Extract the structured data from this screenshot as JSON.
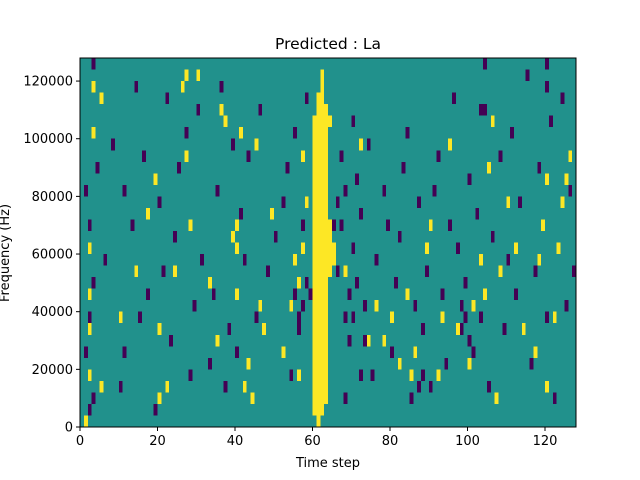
{
  "chart_data": {
    "type": "heatmap",
    "title": "Predicted : La",
    "xlabel": "Time step",
    "ylabel": "Frequency (Hz)",
    "xlim": [
      0,
      128
    ],
    "ylim": [
      0,
      128000
    ],
    "x_ticks": [
      0,
      20,
      40,
      60,
      80,
      100,
      120
    ],
    "x_tick_labels": [
      "0",
      "20",
      "40",
      "60",
      "80",
      "100",
      "120"
    ],
    "y_ticks": [
      0,
      20000,
      40000,
      60000,
      80000,
      100000,
      120000
    ],
    "y_tick_labels": [
      "0",
      "20000",
      "40000",
      "60000",
      "80000",
      "100000",
      "120000"
    ],
    "grid": false,
    "legend": "none",
    "colormap": "viridis",
    "colors": {
      "background": "#21918c",
      "high": "#fde725",
      "low": "#440154"
    },
    "bin_height": 4000,
    "high_cells": [
      [
        1,
        0
      ],
      [
        2,
        4
      ],
      [
        2,
        8
      ],
      [
        2,
        15
      ],
      [
        3,
        25
      ],
      [
        3,
        29
      ],
      [
        5,
        28
      ],
      [
        20,
        2
      ],
      [
        20,
        8
      ],
      [
        22,
        3
      ],
      [
        26,
        29
      ],
      [
        27,
        23
      ],
      [
        27,
        30
      ],
      [
        28,
        17
      ],
      [
        36,
        27
      ],
      [
        37,
        26
      ],
      [
        33,
        12
      ],
      [
        39,
        16
      ],
      [
        40,
        11
      ],
      [
        40,
        15
      ],
      [
        40,
        17
      ],
      [
        41,
        25
      ],
      [
        42,
        3
      ],
      [
        43,
        5
      ],
      [
        45,
        24
      ],
      [
        47,
        8
      ],
      [
        54,
        10
      ],
      [
        55,
        14
      ],
      [
        56,
        12
      ],
      [
        57,
        15
      ],
      [
        57,
        23
      ],
      [
        60,
        8
      ],
      [
        61,
        20
      ],
      [
        61,
        21
      ],
      [
        62,
        22
      ],
      [
        63,
        24
      ],
      [
        64,
        26
      ],
      [
        78,
        7
      ],
      [
        80,
        9
      ],
      [
        82,
        5
      ],
      [
        84,
        11
      ],
      [
        85,
        4
      ],
      [
        89,
        15
      ],
      [
        90,
        17
      ],
      [
        93,
        9
      ],
      [
        95,
        24
      ],
      [
        100,
        5
      ],
      [
        103,
        14
      ],
      [
        105,
        22
      ],
      [
        107,
        2
      ],
      [
        108,
        13
      ],
      [
        110,
        19
      ],
      [
        112,
        15
      ],
      [
        118,
        14
      ],
      [
        119,
        17
      ],
      [
        120,
        21
      ],
      [
        122,
        9
      ],
      [
        124,
        19
      ],
      [
        125,
        21
      ],
      [
        126,
        23
      ],
      [
        2,
        11
      ],
      [
        5,
        3
      ],
      [
        10,
        9
      ],
      [
        14,
        13
      ],
      [
        17,
        18
      ],
      [
        19,
        21
      ],
      [
        24,
        13
      ],
      [
        35,
        7
      ],
      [
        46,
        10
      ],
      [
        52,
        6
      ],
      [
        58,
        19
      ],
      [
        68,
        13
      ],
      [
        74,
        7
      ],
      [
        76,
        10
      ],
      [
        86,
        6
      ],
      [
        92,
        4
      ],
      [
        97,
        8
      ],
      [
        101,
        10
      ],
      [
        104,
        11
      ],
      [
        106,
        26
      ],
      [
        114,
        8
      ],
      [
        117,
        6
      ],
      [
        120,
        3
      ],
      [
        123,
        15
      ],
      [
        72,
        24
      ],
      [
        49,
        18
      ],
      [
        30,
        30
      ],
      [
        44,
        2
      ],
      [
        56,
        4
      ]
    ],
    "low_cells": [
      [
        2,
        1
      ],
      [
        3,
        2
      ],
      [
        1,
        6
      ],
      [
        2,
        9
      ],
      [
        3,
        12
      ],
      [
        2,
        17
      ],
      [
        1,
        20
      ],
      [
        4,
        22
      ],
      [
        3,
        31
      ],
      [
        6,
        14
      ],
      [
        8,
        24
      ],
      [
        10,
        3
      ],
      [
        11,
        6
      ],
      [
        11,
        20
      ],
      [
        13,
        17
      ],
      [
        14,
        29
      ],
      [
        15,
        9
      ],
      [
        16,
        23
      ],
      [
        17,
        11
      ],
      [
        19,
        1
      ],
      [
        20,
        19
      ],
      [
        21,
        13
      ],
      [
        22,
        28
      ],
      [
        23,
        7
      ],
      [
        24,
        16
      ],
      [
        25,
        22
      ],
      [
        27,
        25
      ],
      [
        28,
        4
      ],
      [
        29,
        10
      ],
      [
        30,
        27
      ],
      [
        31,
        14
      ],
      [
        33,
        5
      ],
      [
        34,
        11
      ],
      [
        35,
        20
      ],
      [
        36,
        29
      ],
      [
        37,
        3
      ],
      [
        38,
        8
      ],
      [
        39,
        24
      ],
      [
        40,
        6
      ],
      [
        41,
        18
      ],
      [
        42,
        14
      ],
      [
        43,
        23
      ],
      [
        45,
        9
      ],
      [
        46,
        27
      ],
      [
        48,
        13
      ],
      [
        50,
        16
      ],
      [
        52,
        19
      ],
      [
        53,
        22
      ],
      [
        54,
        4
      ],
      [
        55,
        25
      ],
      [
        56,
        8
      ],
      [
        57,
        17
      ],
      [
        58,
        28
      ],
      [
        59,
        11
      ],
      [
        60,
        2
      ],
      [
        62,
        6
      ],
      [
        66,
        13
      ],
      [
        67,
        17
      ],
      [
        67,
        23
      ],
      [
        68,
        2
      ],
      [
        68,
        20
      ],
      [
        68,
        9
      ],
      [
        69,
        11
      ],
      [
        70,
        15
      ],
      [
        70,
        26
      ],
      [
        71,
        21
      ],
      [
        72,
        18
      ],
      [
        73,
        10
      ],
      [
        74,
        24
      ],
      [
        75,
        4
      ],
      [
        76,
        14
      ],
      [
        78,
        20
      ],
      [
        79,
        17
      ],
      [
        80,
        6
      ],
      [
        81,
        12
      ],
      [
        82,
        16
      ],
      [
        83,
        22
      ],
      [
        84,
        25
      ],
      [
        85,
        2
      ],
      [
        86,
        10
      ],
      [
        87,
        19
      ],
      [
        88,
        8
      ],
      [
        89,
        13
      ],
      [
        90,
        3
      ],
      [
        91,
        20
      ],
      [
        92,
        23
      ],
      [
        93,
        11
      ],
      [
        94,
        5
      ],
      [
        95,
        17
      ],
      [
        96,
        28
      ],
      [
        97,
        15
      ],
      [
        98,
        8
      ],
      [
        99,
        12
      ],
      [
        100,
        21
      ],
      [
        101,
        6
      ],
      [
        102,
        18
      ],
      [
        103,
        9
      ],
      [
        104,
        27
      ],
      [
        105,
        3
      ],
      [
        106,
        16
      ],
      [
        108,
        23
      ],
      [
        109,
        8
      ],
      [
        110,
        14
      ],
      [
        111,
        25
      ],
      [
        112,
        11
      ],
      [
        113,
        19
      ],
      [
        115,
        30
      ],
      [
        116,
        5
      ],
      [
        117,
        13
      ],
      [
        118,
        22
      ],
      [
        119,
        17
      ],
      [
        120,
        9
      ],
      [
        121,
        26
      ],
      [
        122,
        2
      ],
      [
        123,
        15
      ],
      [
        124,
        28
      ],
      [
        125,
        10
      ],
      [
        126,
        20
      ],
      [
        127,
        13
      ],
      [
        64,
        14
      ],
      [
        64,
        15
      ],
      [
        65,
        17
      ],
      [
        66,
        19
      ],
      [
        69,
        7
      ],
      [
        70,
        9
      ],
      [
        71,
        12
      ],
      [
        72,
        4
      ],
      [
        73,
        7
      ],
      [
        55,
        11
      ],
      [
        56,
        9
      ],
      [
        57,
        10
      ],
      [
        58,
        12
      ],
      [
        98,
        10
      ],
      [
        99,
        9
      ],
      [
        100,
        7
      ],
      [
        87,
        3
      ],
      [
        88,
        4
      ],
      [
        103,
        27
      ],
      [
        104,
        31
      ],
      [
        120,
        29
      ],
      [
        120,
        31
      ]
    ],
    "high_ranges": [
      [
        60,
        1,
        26
      ],
      [
        61,
        0,
        28
      ],
      [
        62,
        1,
        30
      ],
      [
        63,
        2,
        27
      ],
      [
        64,
        13,
        17
      ],
      [
        65,
        14,
        15
      ]
    ]
  }
}
